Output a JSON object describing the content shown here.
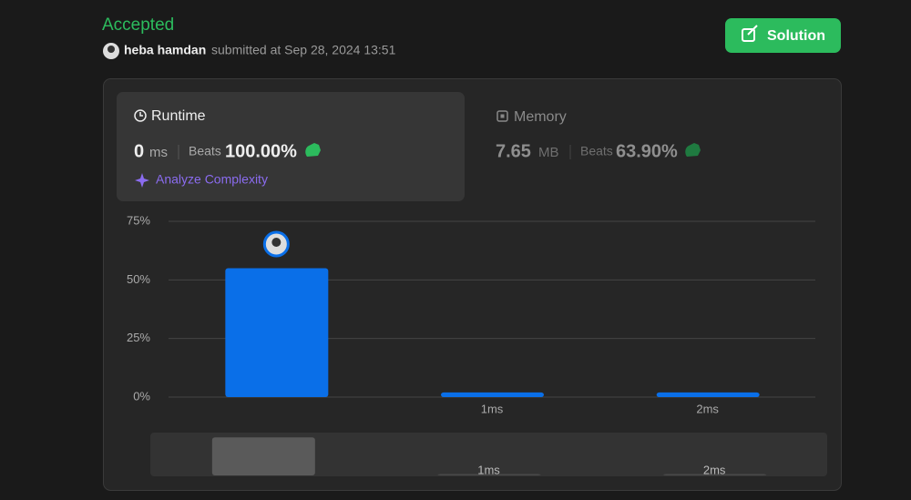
{
  "header": {
    "status": "Accepted",
    "user": "heba hamdan",
    "submitted": "submitted at Sep 28, 2024 13:51",
    "button": "Solution"
  },
  "runtime": {
    "title": "Runtime",
    "value": "0",
    "unit": "ms",
    "beats_label": "Beats",
    "beats": "100.00%",
    "analyze": "Analyze Complexity"
  },
  "memory": {
    "title": "Memory",
    "value": "7.65",
    "unit": "MB",
    "beats_label": "Beats",
    "beats": "63.90%"
  },
  "chart_data": {
    "type": "bar",
    "categories": [
      null,
      "1ms",
      "2ms"
    ],
    "values": [
      55,
      2,
      2
    ],
    "color": "#0a6fe8",
    "ylim": [
      0,
      75
    ],
    "yticks": [
      {
        "value": 0,
        "label": "0%"
      },
      {
        "value": 25,
        "label": "25%"
      },
      {
        "value": 50,
        "label": "50%"
      },
      {
        "value": 75,
        "label": "75%"
      }
    ],
    "grid": true
  }
}
